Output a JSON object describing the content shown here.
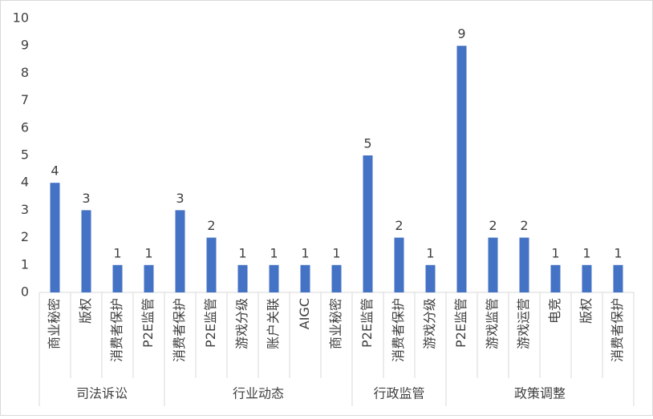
{
  "chart_data": {
    "type": "bar",
    "color": "#4472c4",
    "ylim": [
      0,
      10
    ],
    "yticks": [
      0,
      1,
      2,
      3,
      4,
      5,
      6,
      7,
      8,
      9,
      10
    ],
    "groups": [
      {
        "name": "司法诉讼",
        "categories": [
          "商业秘密",
          "版权",
          "消费者保护",
          "P2E监管"
        ],
        "values": [
          4,
          3,
          1,
          1
        ]
      },
      {
        "name": "行业动态",
        "categories": [
          "消费者保护",
          "P2E监管",
          "游戏分级",
          "账户关联",
          "AIGC",
          "商业秘密"
        ],
        "values": [
          3,
          2,
          1,
          1,
          1,
          1
        ]
      },
      {
        "name": "行政监管",
        "categories": [
          "P2E监管",
          "消费者保护",
          "游戏分级"
        ],
        "values": [
          5,
          2,
          1
        ]
      },
      {
        "name": "政策调整",
        "categories": [
          "P2E监管",
          "游戏监管",
          "游戏运营",
          "电竞",
          "版权",
          "消费者保护"
        ],
        "values": [
          9,
          2,
          2,
          1,
          1,
          1
        ]
      }
    ]
  }
}
